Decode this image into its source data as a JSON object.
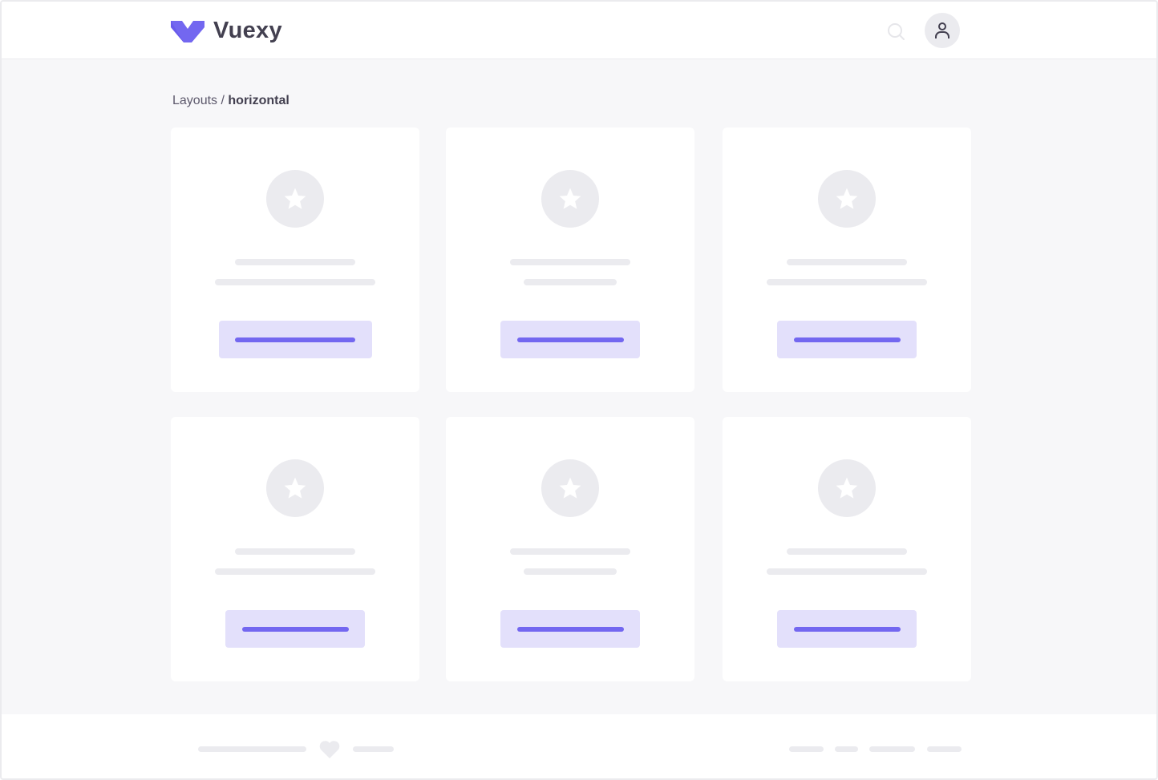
{
  "header": {
    "brand": "Vuexy",
    "brand_color": "#7367f0",
    "icons": [
      "search-icon",
      "user-icon"
    ]
  },
  "breadcrumb": {
    "parent": "Layouts",
    "separator": " / ",
    "current": "horizontal"
  },
  "cards": [
    {
      "icon": "star-icon"
    },
    {
      "icon": "star-icon"
    },
    {
      "icon": "star-icon"
    },
    {
      "icon": "star-icon"
    },
    {
      "icon": "star-icon"
    },
    {
      "icon": "star-icon"
    }
  ],
  "footer": {
    "icon": "heart-icon"
  }
}
